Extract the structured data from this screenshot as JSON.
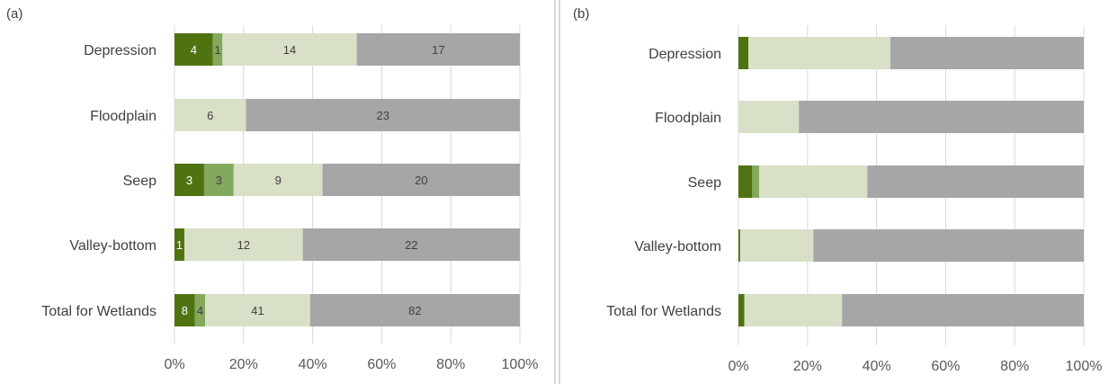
{
  "colors": {
    "background": "#ffffff",
    "gridline": "#d9d9d9",
    "separator": "#c8c8c8",
    "text": "#404040",
    "series": [
      "#4f7311",
      "#84a85c",
      "#d8e0c8",
      "#a6a6a6"
    ],
    "data_label_text": [
      "#ffffff",
      "#404040",
      "#404040",
      "#404040"
    ]
  },
  "chart_data": [
    {
      "type": "bar",
      "orientation": "horizontal",
      "stacking": "percent",
      "panel_label": "(a)",
      "categories": [
        "Depression",
        "Floodplain",
        "Seep",
        "Valley-bottom",
        "Total for Wetlands"
      ],
      "series": [
        {
          "values": [
            4,
            0,
            3,
            1,
            8
          ]
        },
        {
          "values": [
            1,
            0,
            3,
            0,
            4
          ]
        },
        {
          "values": [
            14,
            6,
            9,
            12,
            41
          ]
        },
        {
          "values": [
            17,
            23,
            20,
            22,
            82
          ]
        }
      ],
      "data_labels": [
        [
          "4",
          "1",
          "14",
          "17"
        ],
        [
          "",
          "",
          "6",
          "23"
        ],
        [
          "3",
          "3",
          "9",
          "20"
        ],
        [
          "1",
          "",
          "12",
          "22"
        ],
        [
          "8",
          "4",
          "41",
          "82"
        ]
      ],
      "x_ticks": [
        "0%",
        "20%",
        "40%",
        "60%",
        "80%",
        "100%"
      ],
      "xlim": [
        0,
        100
      ],
      "grid": true,
      "legend": "none"
    },
    {
      "type": "bar",
      "orientation": "horizontal",
      "stacking": "percent",
      "panel_label": "(b)",
      "categories": [
        "Depression",
        "Floodplain",
        "Seep",
        "Valley-bottom",
        "Total for Wetlands"
      ],
      "series": [
        {
          "values": [
            2.9,
            0,
            4.0,
            0.5,
            1.7
          ]
        },
        {
          "values": [
            0,
            0,
            2.0,
            0,
            0
          ]
        },
        {
          "values": [
            41.1,
            17.5,
            31.3,
            21.2,
            28.3
          ]
        },
        {
          "values": [
            56.0,
            82.5,
            62.7,
            78.3,
            70.0
          ]
        }
      ],
      "x_ticks": [
        "0%",
        "20%",
        "40%",
        "60%",
        "80%",
        "100%"
      ],
      "xlim": [
        0,
        100
      ],
      "grid": true,
      "legend": "none"
    }
  ]
}
